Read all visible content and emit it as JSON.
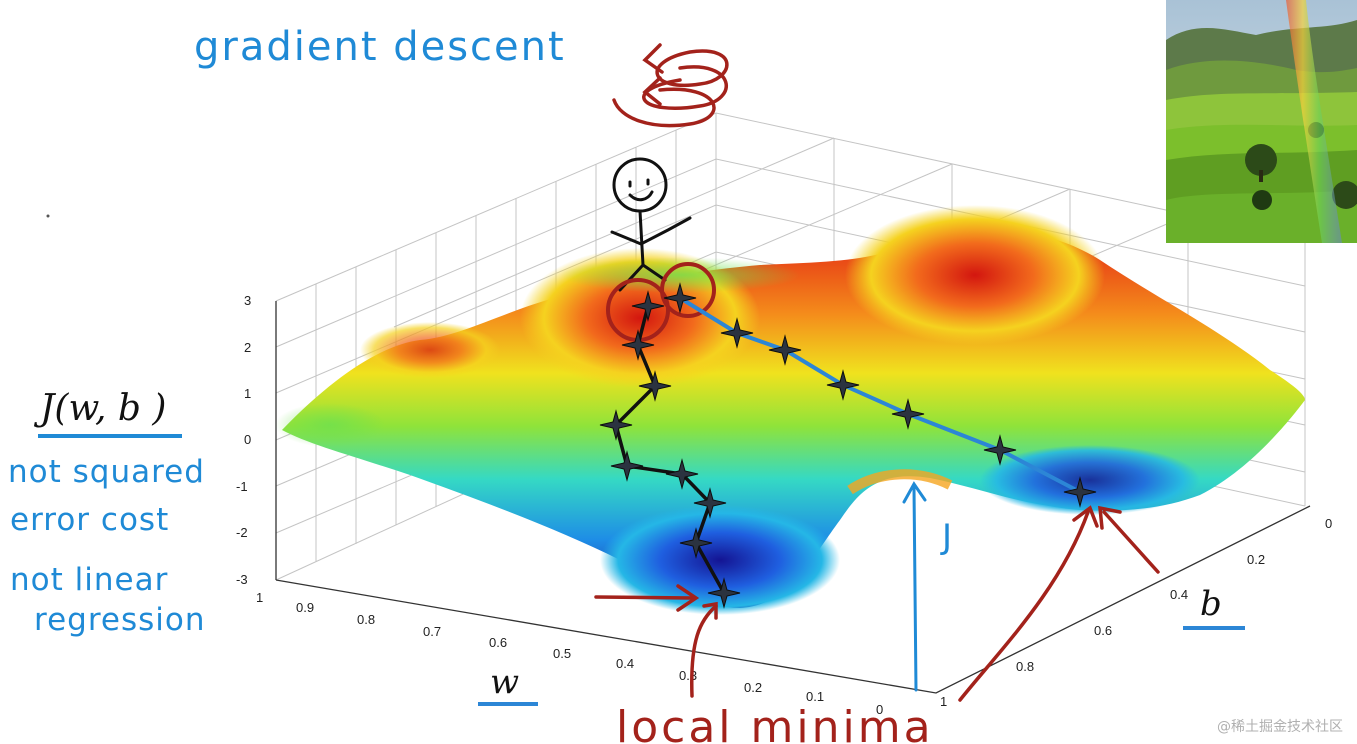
{
  "title": "gradient descent",
  "cost_function": "J(w, b )",
  "notes": [
    "not squared",
    "error cost",
    "not linear",
    "regression"
  ],
  "local_minima_label": "local minima",
  "j_label": "J",
  "axes": {
    "w_label": "w",
    "b_label": "b",
    "z_ticks": [
      "3",
      "2",
      "1",
      "0",
      "-1",
      "-2",
      "-3"
    ],
    "w_ticks": [
      "1",
      "0.9",
      "0.8",
      "0.7",
      "0.6",
      "0.5",
      "0.4",
      "0.3",
      "0.2",
      "0.1",
      "0"
    ],
    "b_ticks": [
      "0",
      "0.2",
      "0.4",
      "0.6",
      "0.8",
      "1"
    ]
  },
  "watermark": "@稀土掘金技术社区",
  "colors": {
    "annotation_blue": "#1f8ad6",
    "annotation_red": "#a3221b",
    "path_black": "#111111",
    "path_blue": "#2c86d6"
  }
}
